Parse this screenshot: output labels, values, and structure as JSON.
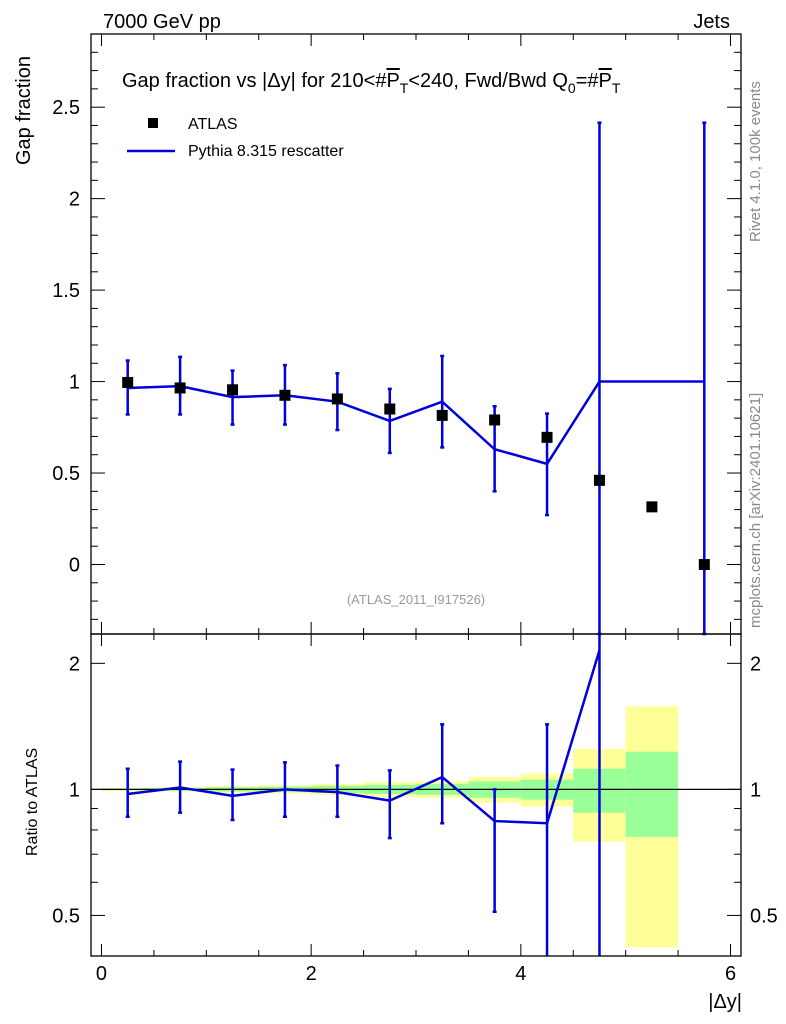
{
  "header": {
    "left": "7000 GeV pp",
    "right": "Jets"
  },
  "side": {
    "rivet": "Rivet 4.1.0,  100k events",
    "mcplots": "mcplots.cern.ch [arXiv:2401.10621]"
  },
  "watermark": "(ATLAS_2011_I917526)",
  "chart_data": {
    "type": "scatter",
    "title": "Gap fraction vs |Δy| for 210<#P̅T<240, Fwd/Bwd Q₀=#P̅T",
    "title_parts": {
      "a": "Gap fraction vs |",
      "b": "Δy| for 210<#",
      "c": "P",
      "d": "T",
      "e": "<240, Fwd/Bwd Q",
      "f": "0",
      "g": "=#",
      "h": "P",
      "i": "T"
    },
    "xlabel": "|Δy|",
    "ylabel": "Gap fraction",
    "ratio_ylabel": "Ratio to ATLAS",
    "xlim": [
      -0.1,
      6.1
    ],
    "ylim": [
      -0.38,
      2.9
    ],
    "ratio_ylim": [
      0.4,
      2.35
    ],
    "x_ticks": [
      0,
      2,
      4,
      6
    ],
    "y_ticks": [
      0,
      0.5,
      1,
      1.5,
      2,
      2.5
    ],
    "y_tick_labels": [
      "0",
      "0.5",
      "1",
      "1.5",
      "2",
      "2.5"
    ],
    "ratio_ticks": [
      0.5,
      1,
      2
    ],
    "legend": [
      "ATLAS",
      "Pythia 8.315 rescatter"
    ],
    "legend_position": "top-left",
    "atlas": {
      "x": [
        0.25,
        0.75,
        1.25,
        1.75,
        2.25,
        2.75,
        3.25,
        3.75,
        4.25,
        4.75,
        5.25,
        5.75
      ],
      "y": [
        0.995,
        0.965,
        0.955,
        0.925,
        0.905,
        0.85,
        0.815,
        0.79,
        0.695,
        0.46,
        0.315,
        0.0
      ],
      "rel_err_inner": [
        0.005,
        0.008,
        0.012,
        0.015,
        0.02,
        0.025,
        0.03,
        0.045,
        0.055,
        0.12,
        0.23,
        0.0
      ],
      "rel_err_outer": [
        0.008,
        0.012,
        0.018,
        0.022,
        0.03,
        0.04,
        0.045,
        0.07,
        0.09,
        0.25,
        0.58,
        0.0
      ]
    },
    "mc": {
      "name": "Pythia 8.315 rescatter",
      "color": "#0000dd",
      "edges": [
        0.0,
        0.5,
        1.0,
        1.5,
        2.0,
        2.5,
        3.0,
        3.5,
        4.0,
        4.5,
        5.0,
        5.5,
        6.0
      ],
      "x": [
        0.25,
        0.75,
        1.25,
        1.75,
        2.25,
        2.75,
        3.25,
        3.75,
        4.25,
        4.75,
        5.75
      ],
      "y": [
        0.965,
        0.975,
        0.915,
        0.925,
        0.89,
        0.785,
        0.89,
        0.63,
        0.55,
        1.0,
        1.0
      ],
      "ylo": [
        0.82,
        0.82,
        0.765,
        0.765,
        0.735,
        0.61,
        0.64,
        0.4,
        0.27,
        -0.38,
        -0.38
      ],
      "yhi": [
        1.115,
        1.135,
        1.06,
        1.09,
        1.045,
        0.96,
        1.14,
        0.865,
        0.825,
        2.415,
        2.415
      ],
      "ratio": [
        0.975,
        1.01,
        0.965,
        1.0,
        0.985,
        0.94,
        1.07,
        0.84,
        0.83,
        2.15
      ],
      "ratio_lo": [
        0.86,
        0.88,
        0.845,
        0.86,
        0.86,
        0.765,
        0.83,
        0.51,
        0.35,
        0.35
      ],
      "ratio_hi": [
        1.12,
        1.165,
        1.115,
        1.16,
        1.14,
        1.11,
        1.43,
        1.0,
        1.43,
        2.35
      ]
    }
  }
}
